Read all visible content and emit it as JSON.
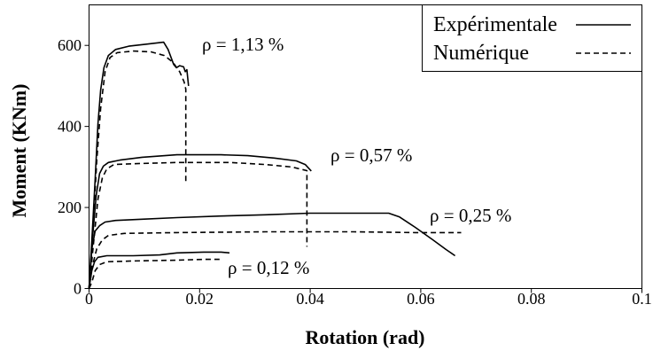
{
  "chart_data": {
    "type": "line",
    "xlabel": "Rotation (rad)",
    "ylabel": "Moment (KNm)",
    "xlim": [
      0,
      0.1
    ],
    "ylim": [
      0,
      700
    ],
    "xticks": [
      0,
      0.02,
      0.04,
      0.06,
      0.08,
      0.1
    ],
    "xtick_labels": [
      "0",
      "0.02",
      "0.04",
      "0.06",
      "0.08",
      "0.1"
    ],
    "yticks": [
      0,
      200,
      400,
      600
    ],
    "ytick_labels": [
      "0",
      "200",
      "400",
      "600"
    ],
    "grid": false,
    "line_color": "#000000",
    "legend": {
      "placement": "top-right",
      "entries": [
        {
          "label": "Expérimentale",
          "dashed": false
        },
        {
          "label": "Numérique",
          "dashed": true
        }
      ]
    },
    "groups": [
      {
        "label": "ρ = 1,13 %",
        "series": [
          {
            "legend_entry": 0,
            "x": [
              0,
              0.0006,
              0.0011,
              0.0016,
              0.0021,
              0.0027,
              0.0035,
              0.0048,
              0.0072,
              0.0104,
              0.0135,
              0.0143,
              0.0153,
              0.0158,
              0.0164,
              0.0171,
              0.0174,
              0.0177,
              0.018
            ],
            "y": [
              0,
              140,
              270,
              405,
              490,
              545,
              575,
              590,
              598,
              603,
              608,
              590,
              553,
              545,
              550,
              547,
              535,
              540,
              500
            ]
          },
          {
            "legend_entry": 1,
            "x": [
              0,
              0.0008,
              0.0014,
              0.0021,
              0.0029,
              0.0038,
              0.0051,
              0.008,
              0.0112,
              0.0136,
              0.0152,
              0.0164,
              0.0172,
              0.0175,
              0.0175
            ],
            "y": [
              0,
              165,
              315,
              445,
              535,
              570,
              582,
              586,
              584,
              575,
              558,
              535,
              510,
              492,
              262
            ]
          }
        ]
      },
      {
        "label": "ρ = 0,57 %",
        "series": [
          {
            "legend_entry": 0,
            "x": [
              0,
              0.0006,
              0.0013,
              0.0019,
              0.0026,
              0.0035,
              0.0056,
              0.0096,
              0.0159,
              0.0239,
              0.0287,
              0.0335,
              0.0375,
              0.0391,
              0.0402
            ],
            "y": [
              0,
              120,
              230,
              284,
              302,
              311,
              317,
              324,
              330,
              330,
              328,
              322,
              315,
              306,
              290
            ]
          },
          {
            "legend_entry": 1,
            "x": [
              0,
              0.0008,
              0.0016,
              0.0024,
              0.0032,
              0.0045,
              0.008,
              0.0159,
              0.0255,
              0.0319,
              0.0367,
              0.0394,
              0.0394
            ],
            "y": [
              0,
              110,
              220,
              273,
              295,
              306,
              308,
              311,
              311,
              306,
              300,
              291,
              103
            ]
          }
        ]
      },
      {
        "label": "ρ = 0,25 %",
        "series": [
          {
            "legend_entry": 0,
            "x": [
              0,
              0.0005,
              0.0011,
              0.0019,
              0.0029,
              0.0048,
              0.0096,
              0.0159,
              0.0239,
              0.0319,
              0.0399,
              0.0478,
              0.0542,
              0.0561,
              0.059,
              0.0622,
              0.0646,
              0.0662
            ],
            "y": [
              0,
              98,
              142,
              155,
              164,
              168,
              171,
              175,
              179,
              182,
              186,
              186,
              186,
              177,
              151,
              120,
              96,
              81
            ]
          },
          {
            "legend_entry": 1,
            "x": [
              0,
              0.0006,
              0.0014,
              0.0024,
              0.0035,
              0.0064,
              0.0159,
              0.0319,
              0.0478,
              0.059,
              0.0673
            ],
            "y": [
              0,
              55,
              98,
              120,
              131,
              136,
              138,
              140,
              140,
              138,
              138
            ]
          }
        ]
      },
      {
        "label": "ρ = 0,12 %",
        "series": [
          {
            "legend_entry": 0,
            "x": [
              0,
              0.0005,
              0.001,
              0.0016,
              0.0032,
              0.008,
              0.0128,
              0.0159,
              0.0207,
              0.0239,
              0.0254
            ],
            "y": [
              0,
              44,
              66,
              77,
              81,
              81,
              83,
              88,
              90,
              90,
              88
            ]
          },
          {
            "legend_entry": 1,
            "x": [
              0,
              0.0005,
              0.0011,
              0.0019,
              0.0032,
              0.008,
              0.0159,
              0.0207,
              0.0236
            ],
            "y": [
              0,
              15,
              44,
              59,
              66,
              68,
              70,
              72,
              72
            ]
          }
        ]
      }
    ]
  }
}
